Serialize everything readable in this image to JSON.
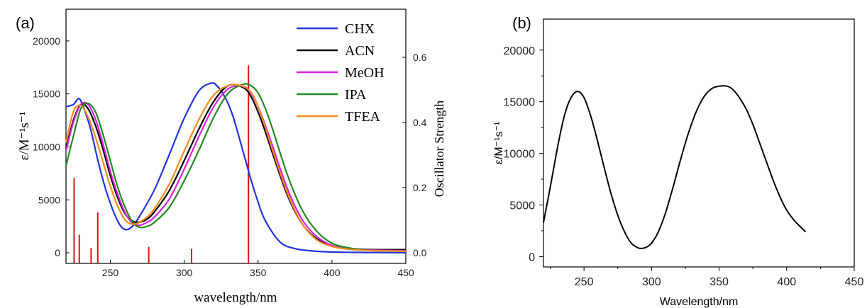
{
  "panels": {
    "a": {
      "label": "(a)"
    },
    "b": {
      "label": "(b)"
    }
  },
  "chart_data": [
    {
      "type": "line",
      "panel": "(a)",
      "xlabel": "wavelength/nm",
      "ylabel": "ε/M⁻¹s⁻¹",
      "y2label": "Oscillator Strength",
      "xlim": [
        220,
        450
      ],
      "ylim": [
        -1000,
        23000
      ],
      "y2lim": [
        -0.0325,
        0.7475
      ],
      "xticks": [
        250,
        300,
        350,
        400,
        450
      ],
      "yticks": [
        0,
        5000,
        10000,
        15000,
        20000
      ],
      "y2ticks": [
        0.0,
        0.2,
        0.4,
        0.6
      ],
      "grid": false,
      "legend_position": "top-right",
      "series": [
        {
          "name": "CHX",
          "color": "#2233dd",
          "x": [
            220,
            225,
            229,
            233,
            237,
            242,
            248,
            255,
            260,
            265,
            270,
            280,
            290,
            300,
            310,
            318,
            322,
            328,
            333,
            340,
            345,
            350,
            355,
            365,
            375,
            385,
            395,
            410,
            430,
            450
          ],
          "y": [
            13800,
            14000,
            14550,
            13300,
            11500,
            8500,
            5500,
            3000,
            2200,
            2500,
            3500,
            6000,
            9300,
            12700,
            15300,
            16000,
            15800,
            14600,
            12900,
            9500,
            7000,
            4800,
            3000,
            1000,
            400,
            200,
            100,
            50,
            20,
            10
          ]
        },
        {
          "name": "ACN",
          "color": "#000000",
          "x": [
            220,
            225,
            230,
            235,
            240,
            245,
            250,
            255,
            260,
            265,
            270,
            275,
            280,
            290,
            300,
            310,
            320,
            330,
            340,
            345,
            350,
            355,
            360,
            370,
            380,
            390,
            400,
            410,
            420,
            430,
            450
          ],
          "y": [
            9800,
            12500,
            14000,
            13600,
            12000,
            9800,
            7300,
            5200,
            3700,
            3000,
            2900,
            3200,
            3900,
            5900,
            8700,
            11700,
            14300,
            15800,
            15600,
            14800,
            13300,
            11400,
            9300,
            5400,
            2700,
            1300,
            650,
            420,
            330,
            300,
            300
          ]
        },
        {
          "name": "MeOH",
          "color": "#e020e0",
          "x": [
            220,
            225,
            230,
            235,
            240,
            245,
            250,
            255,
            260,
            265,
            270,
            275,
            280,
            290,
            300,
            310,
            320,
            330,
            340,
            345,
            350,
            355,
            360,
            370,
            380,
            390,
            400,
            410,
            420,
            430,
            450
          ],
          "y": [
            9600,
            12300,
            14000,
            14000,
            12600,
            10300,
            7700,
            5500,
            3800,
            2800,
            2600,
            2900,
            3400,
            5100,
            7900,
            11000,
            13800,
            15500,
            15700,
            15100,
            13800,
            12000,
            10000,
            6000,
            3100,
            1500,
            700,
            400,
            300,
            250,
            200
          ]
        },
        {
          "name": "IPA",
          "color": "#228822",
          "x": [
            220,
            225,
            230,
            235,
            240,
            245,
            250,
            255,
            260,
            265,
            270,
            275,
            280,
            290,
            300,
            310,
            320,
            330,
            340,
            345,
            350,
            355,
            360,
            370,
            380,
            390,
            400,
            410,
            420,
            430,
            450
          ],
          "y": [
            8200,
            11000,
            13600,
            14100,
            13300,
            11200,
            8700,
            6200,
            4300,
            2900,
            2400,
            2500,
            2900,
            4300,
            6800,
            9700,
            12800,
            15100,
            15900,
            15800,
            15100,
            13600,
            11600,
            7300,
            4000,
            2000,
            900,
            500,
            300,
            200,
            150
          ]
        },
        {
          "name": "TFEA",
          "color": "#f08c1e",
          "x": [
            220,
            225,
            230,
            235,
            240,
            245,
            250,
            255,
            260,
            265,
            270,
            275,
            280,
            290,
            300,
            310,
            320,
            330,
            338,
            345,
            350,
            355,
            360,
            370,
            380,
            390,
            400,
            410,
            420,
            430,
            450
          ],
          "y": [
            10400,
            13300,
            13900,
            12800,
            10900,
            8600,
            6300,
            4400,
            3100,
            2700,
            2900,
            3400,
            4200,
            6500,
            9600,
            12600,
            14900,
            15800,
            15800,
            15200,
            13800,
            11800,
            9600,
            5600,
            2700,
            1200,
            600,
            350,
            250,
            200,
            150
          ]
        }
      ],
      "oscillator_strength": {
        "color": "#dd1111",
        "x": [
          225.5,
          229,
          237,
          241.5,
          276,
          305,
          343.5
        ],
        "y": [
          0.23,
          0.055,
          0.015,
          0.124,
          0.018,
          0.012,
          0.575
        ]
      }
    },
    {
      "type": "line",
      "panel": "(b)",
      "xlabel": "Wavelength/nm",
      "ylabel": "ε/M⁻¹s⁻¹",
      "xlim": [
        220,
        450
      ],
      "ylim": [
        -1000,
        23000
      ],
      "xticks": [
        250,
        300,
        350,
        400,
        450
      ],
      "yticks": [
        0,
        5000,
        10000,
        15000,
        20000
      ],
      "grid": false,
      "series": [
        {
          "color": "#000000",
          "x": [
            220,
            225,
            230,
            235,
            240,
            245,
            250,
            255,
            260,
            265,
            270,
            275,
            280,
            285,
            290,
            293,
            296,
            300,
            305,
            310,
            315,
            320,
            325,
            330,
            335,
            340,
            345,
            350,
            356,
            360,
            365,
            370,
            375,
            380,
            385,
            390,
            395,
            400,
            405,
            410,
            414
          ],
          "y": [
            3300,
            6700,
            10300,
            13400,
            15300,
            16000,
            15400,
            13600,
            11200,
            8600,
            6100,
            4000,
            2400,
            1300,
            850,
            800,
            900,
            1300,
            2400,
            4100,
            6300,
            8700,
            11000,
            13000,
            14600,
            15700,
            16300,
            16500,
            16500,
            16200,
            15400,
            14300,
            12800,
            11000,
            9200,
            7400,
            5800,
            4500,
            3600,
            2900,
            2400
          ]
        }
      ]
    }
  ]
}
